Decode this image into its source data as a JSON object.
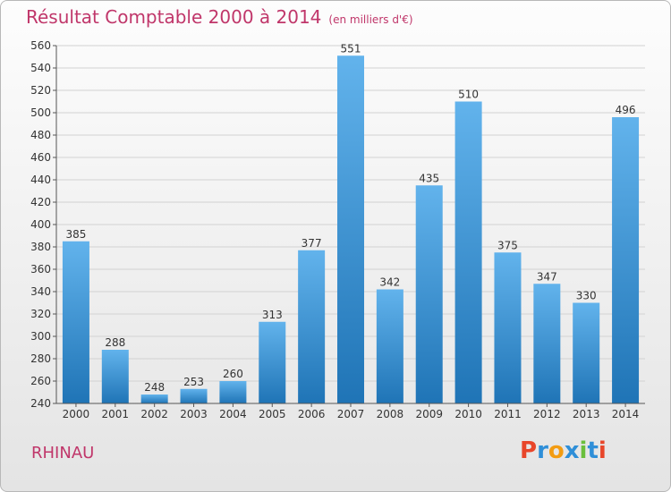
{
  "title": "Résultat Comptable 2000 à 2014",
  "subtitle": "(en milliers d'€)",
  "commune": "RHINAU",
  "logo": {
    "letters": [
      "P",
      "r",
      "o",
      "x",
      "i",
      "t",
      "i"
    ],
    "colors": [
      "#e8462a",
      "#2f8fd8",
      "#f39c12",
      "#2f8fd8",
      "#6abf3c",
      "#2f8fd8",
      "#e8462a"
    ]
  },
  "chart_data": {
    "type": "bar",
    "title": "Résultat Comptable 2000 à 2014",
    "subtitle": "(en milliers d'€)",
    "categories": [
      "2000",
      "2001",
      "2002",
      "2003",
      "2004",
      "2005",
      "2006",
      "2007",
      "2008",
      "2009",
      "2010",
      "2011",
      "2012",
      "2013",
      "2014"
    ],
    "values": [
      385,
      288,
      248,
      253,
      260,
      313,
      377,
      551,
      342,
      435,
      510,
      375,
      347,
      330,
      496
    ],
    "ylim": [
      240,
      560
    ],
    "yticks": [
      240,
      260,
      280,
      300,
      320,
      340,
      360,
      380,
      400,
      420,
      440,
      460,
      480,
      500,
      520,
      540,
      560
    ],
    "grid": true,
    "colors": {
      "bar_top": "#62b3ec",
      "bar_bottom": "#1f74b6",
      "grid": "#d2d2d2"
    }
  }
}
